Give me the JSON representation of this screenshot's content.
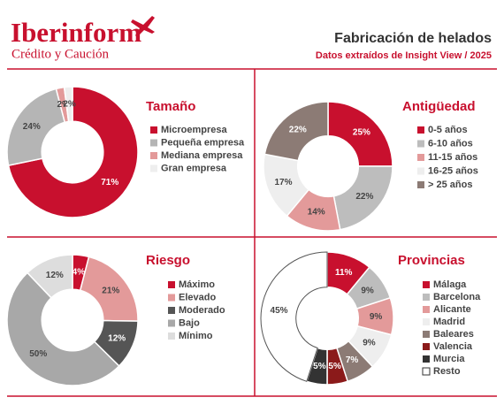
{
  "header": {
    "brand": "Iberinform",
    "tagline": "Crédito y Caución",
    "title": "Fabricación de helados",
    "subtitle": "Datos extraídos de Insight View / 2025"
  },
  "chart_data": [
    {
      "type": "donut",
      "title": "Tamaño",
      "categories": [
        "Microempresa",
        "Pequeña empresa",
        "Mediana empresa",
        "Gran empresa"
      ],
      "values": [
        71,
        24,
        2,
        2
      ],
      "value_labels": [
        "71%",
        "24%",
        "2%",
        "2%"
      ],
      "colors": [
        "#c8102e",
        "#b5b5b5",
        "#e39a9a",
        "#eeeeee"
      ]
    },
    {
      "type": "donut",
      "title": "Antigüedad",
      "categories": [
        "0-5 años",
        "6-10 años",
        "11-15 años",
        "16-25 años",
        "> 25 años"
      ],
      "values": [
        25,
        22,
        14,
        17,
        22
      ],
      "value_labels": [
        "25%",
        "22%",
        "14%",
        "17%",
        "22%"
      ],
      "colors": [
        "#c8102e",
        "#bdbdbd",
        "#e39a9a",
        "#eeeeee",
        "#8c7b75"
      ]
    },
    {
      "type": "donut",
      "title": "Riesgo",
      "categories": [
        "Máximo",
        "Elevado",
        "Moderado",
        "Bajo",
        "Mínimo"
      ],
      "values": [
        4,
        21,
        12,
        50,
        12
      ],
      "value_labels": [
        "4%",
        "21%",
        "12%",
        "50%",
        "12%"
      ],
      "colors": [
        "#c8102e",
        "#e39a9a",
        "#555555",
        "#a8a8a8",
        "#dddddd"
      ]
    },
    {
      "type": "donut",
      "title": "Provincias",
      "categories": [
        "Málaga",
        "Barcelona",
        "Alicante",
        "Madrid",
        "Baleares",
        "Valencia",
        "Murcia",
        "Resto"
      ],
      "values": [
        11,
        9,
        9,
        9,
        7,
        5,
        5,
        45
      ],
      "value_labels": [
        "11%",
        "9%",
        "9%",
        "9%",
        "7%",
        "5%",
        "5%",
        "45%"
      ],
      "colors": [
        "#c8102e",
        "#bdbdbd",
        "#e39a9a",
        "#eeeeee",
        "#8c7b75",
        "#8b1a1a",
        "#333333",
        "#ffffff"
      ]
    }
  ]
}
